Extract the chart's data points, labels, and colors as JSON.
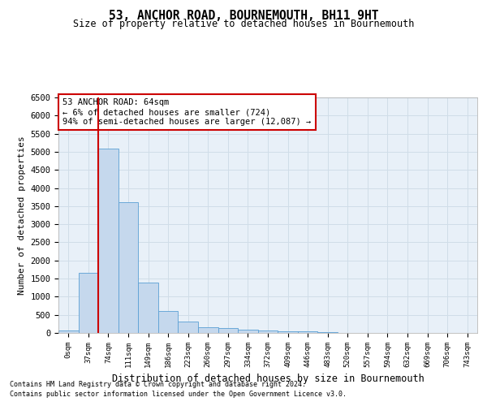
{
  "title": "53, ANCHOR ROAD, BOURNEMOUTH, BH11 9HT",
  "subtitle": "Size of property relative to detached houses in Bournemouth",
  "xlabel": "Distribution of detached houses by size in Bournemouth",
  "ylabel": "Number of detached properties",
  "bar_color": "#c5d8ed",
  "bar_edge_color": "#5a9fd4",
  "categories": [
    "0sqm",
    "37sqm",
    "74sqm",
    "111sqm",
    "149sqm",
    "186sqm",
    "223sqm",
    "260sqm",
    "297sqm",
    "334sqm",
    "372sqm",
    "409sqm",
    "446sqm",
    "483sqm",
    "520sqm",
    "557sqm",
    "594sqm",
    "632sqm",
    "669sqm",
    "706sqm",
    "743sqm"
  ],
  "values": [
    75,
    1660,
    5080,
    3600,
    1400,
    600,
    310,
    160,
    140,
    95,
    70,
    50,
    35,
    20,
    10,
    5,
    3,
    2,
    1,
    1,
    0
  ],
  "ylim": [
    0,
    6500
  ],
  "yticks": [
    0,
    500,
    1000,
    1500,
    2000,
    2500,
    3000,
    3500,
    4000,
    4500,
    5000,
    5500,
    6000,
    6500
  ],
  "vline_x": 2,
  "vline_color": "#cc0000",
  "annotation_text": "53 ANCHOR ROAD: 64sqm\n← 6% of detached houses are smaller (724)\n94% of semi-detached houses are larger (12,087) →",
  "annotation_box_color": "#ffffff",
  "annotation_edge_color": "#cc0000",
  "footer1": "Contains HM Land Registry data © Crown copyright and database right 2024.",
  "footer2": "Contains public sector information licensed under the Open Government Licence v3.0.",
  "grid_color": "#d0dde8",
  "background_color": "#e8f0f8"
}
